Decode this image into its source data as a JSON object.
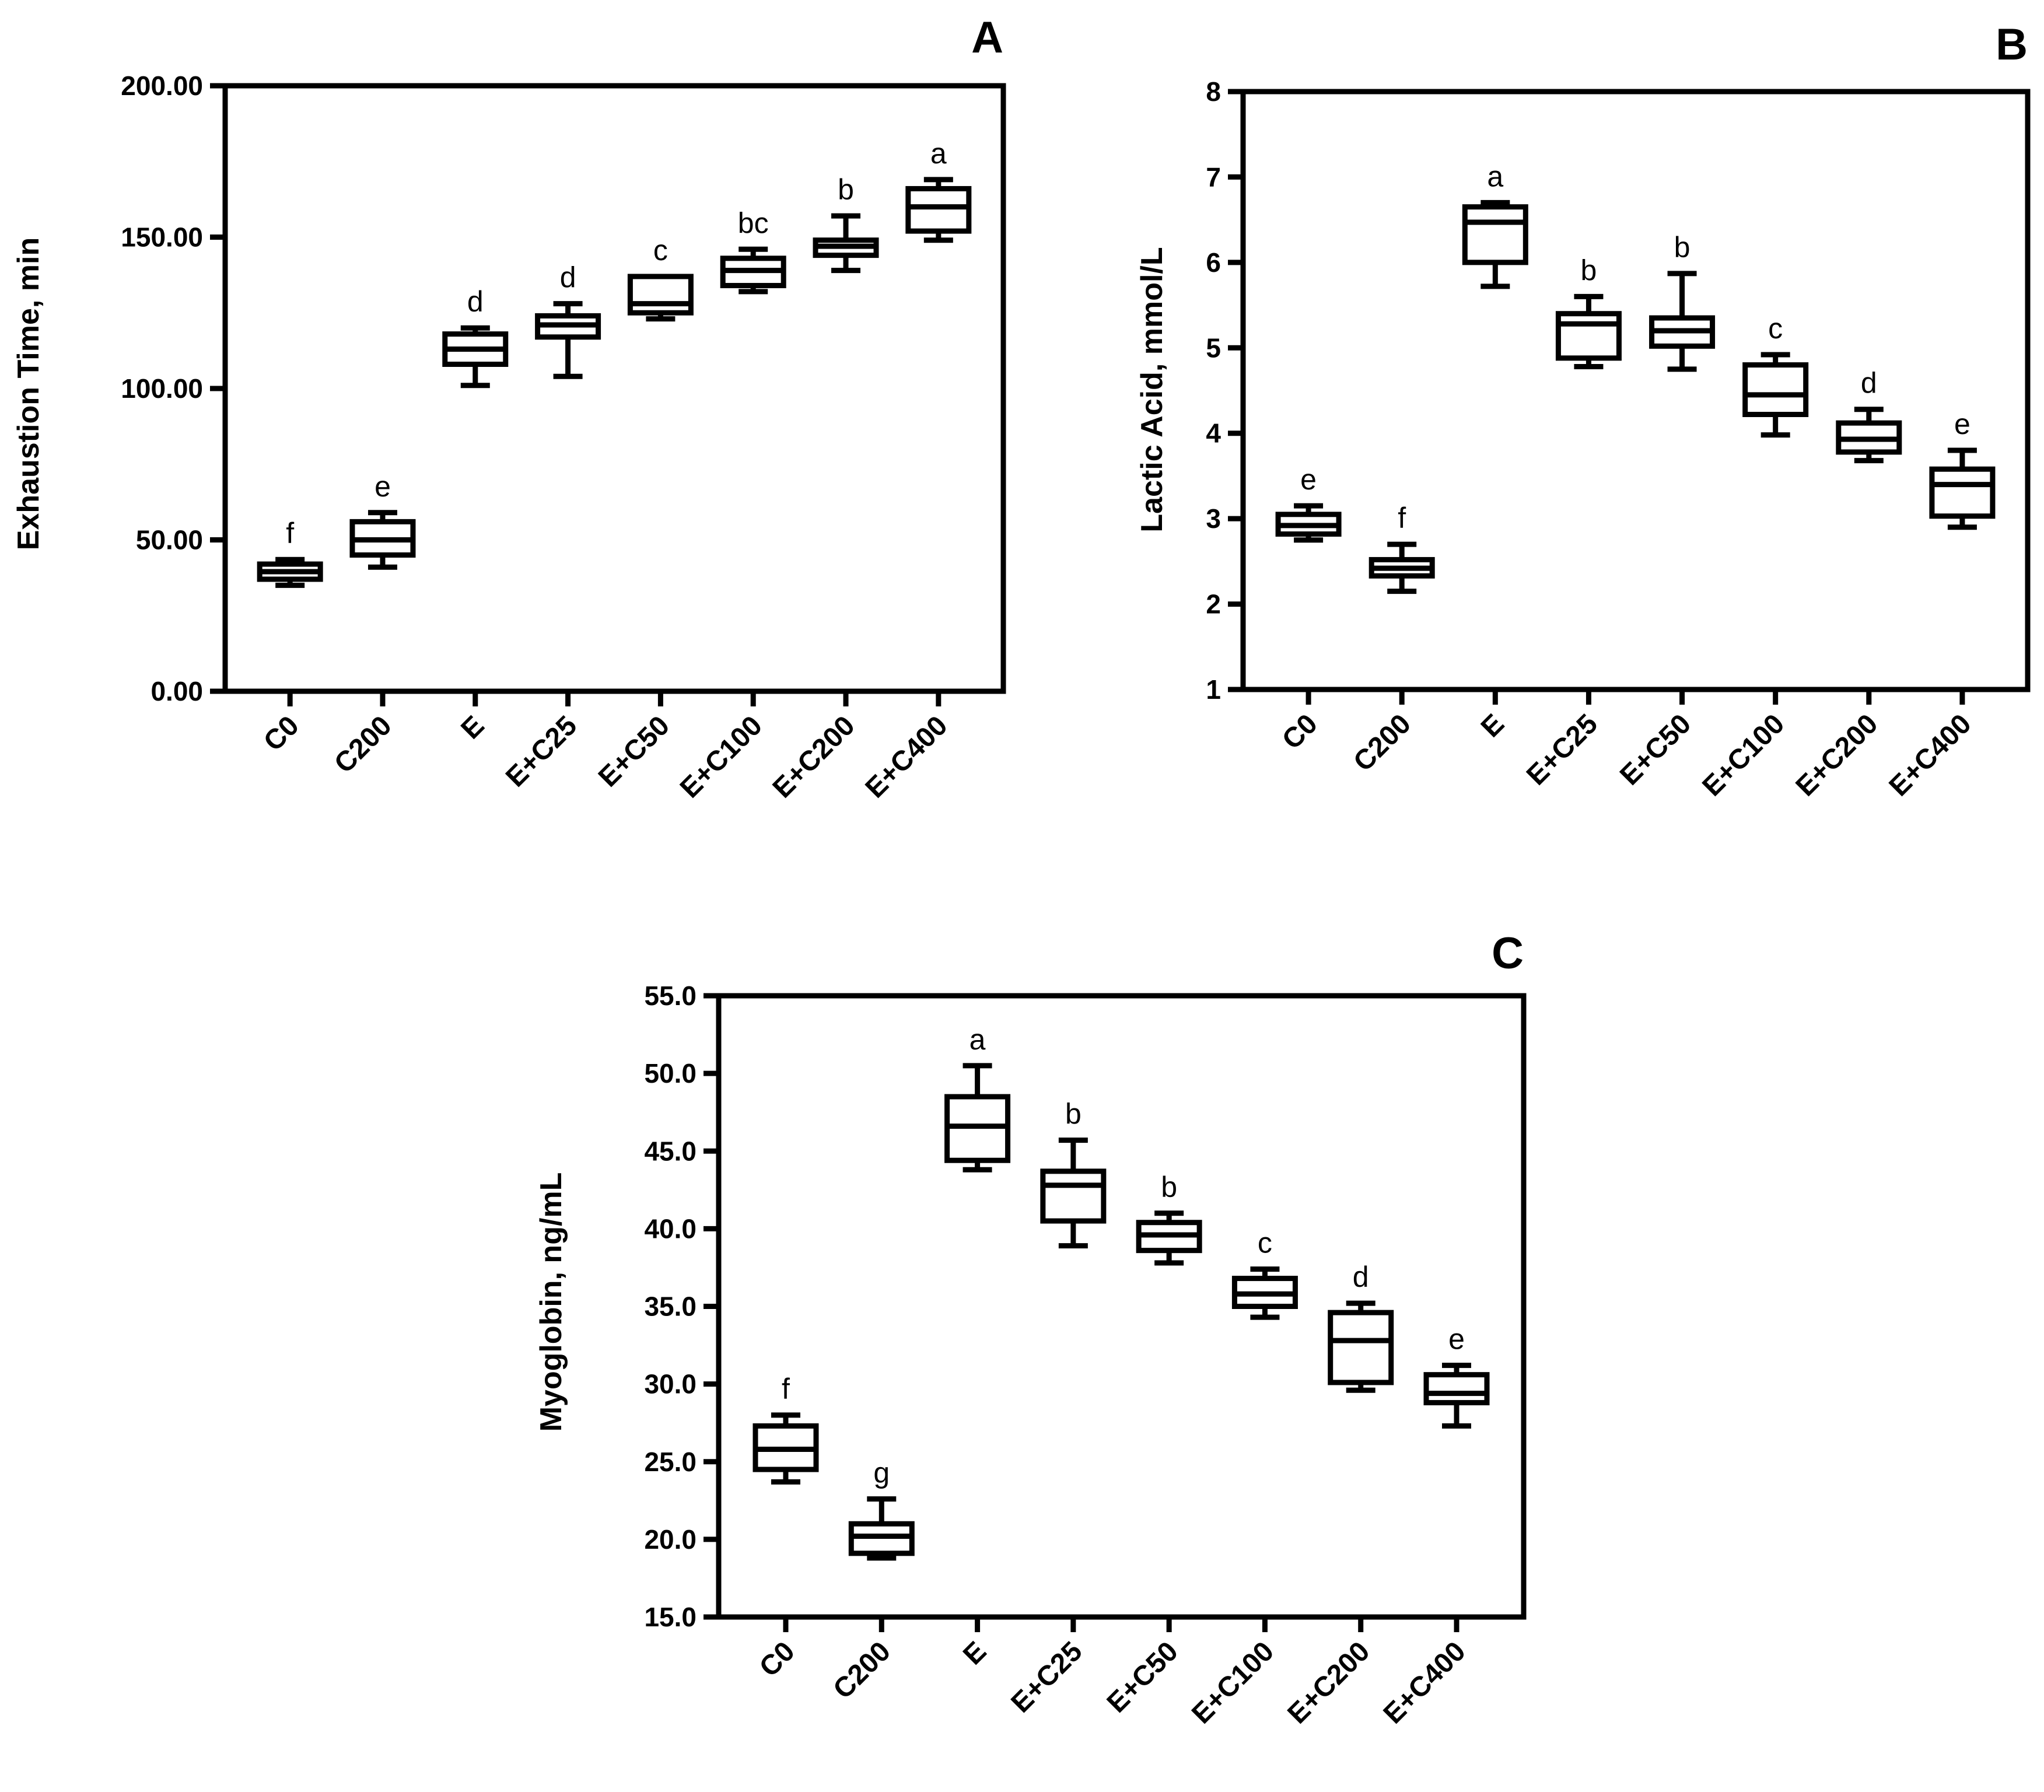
{
  "chart_data": [
    {
      "type": "box",
      "panel": "A",
      "ylabel": "Exhaustion Time, min",
      "xlabel": "",
      "ylim": [
        0,
        200
      ],
      "yticks": [
        "0.00",
        "50.00",
        "100.00",
        "150.00",
        "200.00"
      ],
      "ytick_values": [
        0,
        50,
        100,
        150,
        200
      ],
      "categories": [
        "C0",
        "C200",
        "E",
        "E+C25",
        "E+C50",
        "E+C100",
        "E+C200",
        "E+C400"
      ],
      "boxes": [
        {
          "min": 35,
          "q1": 37,
          "median": 39.5,
          "q3": 42,
          "max": 43.5,
          "letter": "f"
        },
        {
          "min": 41,
          "q1": 45,
          "median": 50,
          "q3": 56,
          "max": 59,
          "letter": "e"
        },
        {
          "min": 101,
          "q1": 108,
          "median": 113,
          "q3": 118,
          "max": 120,
          "letter": "d"
        },
        {
          "min": 104,
          "q1": 117,
          "median": 121,
          "q3": 124,
          "max": 128,
          "letter": "d"
        },
        {
          "min": 123,
          "q1": 125,
          "median": 128,
          "q3": 137,
          "max": 137,
          "letter": "c"
        },
        {
          "min": 132,
          "q1": 134,
          "median": 139,
          "q3": 143,
          "max": 146,
          "letter": "bc"
        },
        {
          "min": 139,
          "q1": 144,
          "median": 147,
          "q3": 149,
          "max": 157,
          "letter": "b"
        },
        {
          "min": 149,
          "q1": 152,
          "median": 160,
          "q3": 166,
          "max": 169,
          "letter": "a"
        }
      ]
    },
    {
      "type": "box",
      "panel": "B",
      "ylabel": "Lactic Acid, mmol/L",
      "xlabel": "",
      "ylim": [
        1,
        8
      ],
      "yticks": [
        "1",
        "2",
        "3",
        "4",
        "5",
        "6",
        "7",
        "8"
      ],
      "ytick_values": [
        1,
        2,
        3,
        4,
        5,
        6,
        7,
        8
      ],
      "categories": [
        "C0",
        "C200",
        "E",
        "E+C25",
        "E+C50",
        "E+C100",
        "E+C200",
        "E+C400"
      ],
      "boxes": [
        {
          "min": 2.75,
          "q1": 2.82,
          "median": 2.92,
          "q3": 3.05,
          "max": 3.15,
          "letter": "e"
        },
        {
          "min": 2.15,
          "q1": 2.33,
          "median": 2.42,
          "q3": 2.52,
          "max": 2.7,
          "letter": "f"
        },
        {
          "min": 5.72,
          "q1": 6.0,
          "median": 6.47,
          "q3": 6.65,
          "max": 6.7,
          "letter": "a"
        },
        {
          "min": 4.78,
          "q1": 4.88,
          "median": 5.28,
          "q3": 5.4,
          "max": 5.6,
          "letter": "b"
        },
        {
          "min": 4.75,
          "q1": 5.02,
          "median": 5.2,
          "q3": 5.35,
          "max": 5.87,
          "letter": "b"
        },
        {
          "min": 3.98,
          "q1": 4.22,
          "median": 4.45,
          "q3": 4.8,
          "max": 4.92,
          "letter": "c"
        },
        {
          "min": 3.68,
          "q1": 3.78,
          "median": 3.93,
          "q3": 4.12,
          "max": 4.28,
          "letter": "d"
        },
        {
          "min": 2.9,
          "q1": 3.03,
          "median": 3.4,
          "q3": 3.58,
          "max": 3.8,
          "letter": "e"
        }
      ]
    },
    {
      "type": "box",
      "panel": "C",
      "ylabel": "Myoglobin, ng/mL",
      "xlabel": "",
      "ylim": [
        15,
        55
      ],
      "yticks": [
        "15.0",
        "20.0",
        "25.0",
        "30.0",
        "35.0",
        "40.0",
        "45.0",
        "50.0",
        "55.0"
      ],
      "ytick_values": [
        15,
        20,
        25,
        30,
        35,
        40,
        45,
        50,
        55
      ],
      "categories": [
        "C0",
        "C200",
        "E",
        "E+C25",
        "E+C50",
        "E+C100",
        "E+C200",
        "E+C400"
      ],
      "boxes": [
        {
          "min": 23.7,
          "q1": 24.5,
          "median": 25.8,
          "q3": 27.3,
          "max": 28.0,
          "letter": "f"
        },
        {
          "min": 18.8,
          "q1": 19.1,
          "median": 20.2,
          "q3": 21.0,
          "max": 22.6,
          "letter": "g"
        },
        {
          "min": 43.8,
          "q1": 44.4,
          "median": 46.6,
          "q3": 48.5,
          "max": 50.5,
          "letter": "a"
        },
        {
          "min": 38.9,
          "q1": 40.5,
          "median": 42.8,
          "q3": 43.7,
          "max": 45.7,
          "letter": "b"
        },
        {
          "min": 37.8,
          "q1": 38.6,
          "median": 39.6,
          "q3": 40.4,
          "max": 41.0,
          "letter": "b"
        },
        {
          "min": 34.3,
          "q1": 35.0,
          "median": 35.8,
          "q3": 36.8,
          "max": 37.4,
          "letter": "c"
        },
        {
          "min": 29.6,
          "q1": 30.1,
          "median": 32.8,
          "q3": 34.6,
          "max": 35.2,
          "letter": "d"
        },
        {
          "min": 27.3,
          "q1": 28.8,
          "median": 29.4,
          "q3": 30.6,
          "max": 31.2,
          "letter": "e"
        }
      ]
    }
  ]
}
